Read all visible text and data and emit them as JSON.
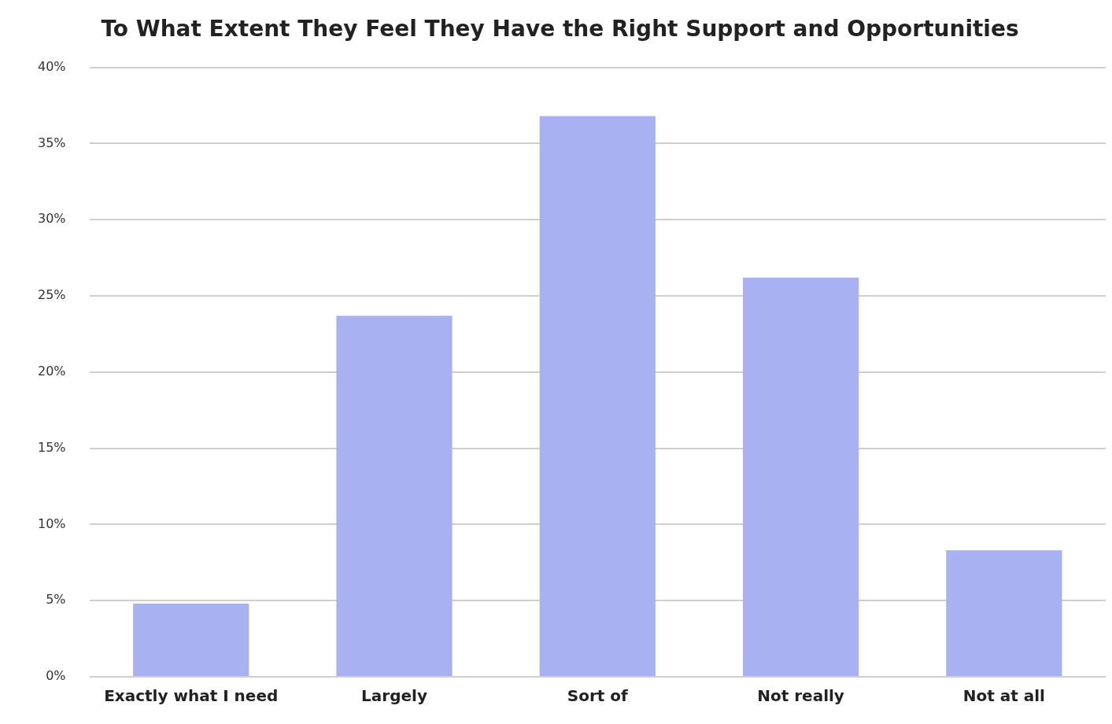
{
  "chart_data": {
    "type": "bar",
    "title": "To What Extent They Feel They Have the Right Support and Opportunities",
    "categories": [
      "Exactly what I need",
      "Largely",
      "Sort of",
      "Not really",
      "Not at all"
    ],
    "values": [
      4.8,
      23.7,
      36.8,
      26.2,
      8.3
    ],
    "color": "#a8b2f2",
    "ylim": [
      0,
      40
    ],
    "yticks": [
      {
        "value": 0,
        "label": "0%"
      },
      {
        "value": 5,
        "label": "5%"
      },
      {
        "value": 10,
        "label": "10%"
      },
      {
        "value": 15,
        "label": "15%"
      },
      {
        "value": 20,
        "label": "20%"
      },
      {
        "value": 25,
        "label": "25%"
      },
      {
        "value": 30,
        "label": "30%"
      },
      {
        "value": 35,
        "label": "35%"
      },
      {
        "value": 40,
        "label": "40%"
      }
    ],
    "grid": "y",
    "legend": false
  }
}
